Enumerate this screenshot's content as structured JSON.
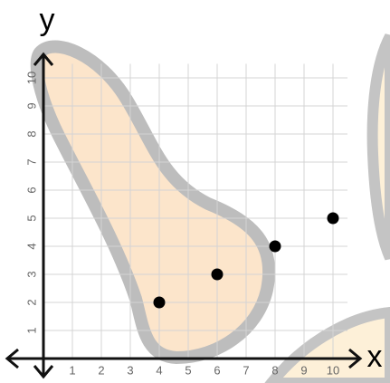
{
  "chart_data": {
    "type": "scatter",
    "xlabel": "x",
    "ylabel": "y",
    "x": [
      4,
      6,
      8,
      10
    ],
    "values": [
      2,
      3,
      4,
      5
    ],
    "color": "#000000",
    "xlim": [
      0,
      10.5
    ],
    "ylim": [
      0,
      10.5
    ],
    "xticks": [
      1,
      2,
      3,
      4,
      5,
      6,
      7,
      8,
      9,
      10
    ],
    "yticks": [
      1,
      2,
      3,
      4,
      5,
      6,
      7,
      8,
      9,
      10
    ],
    "grid": true
  }
}
